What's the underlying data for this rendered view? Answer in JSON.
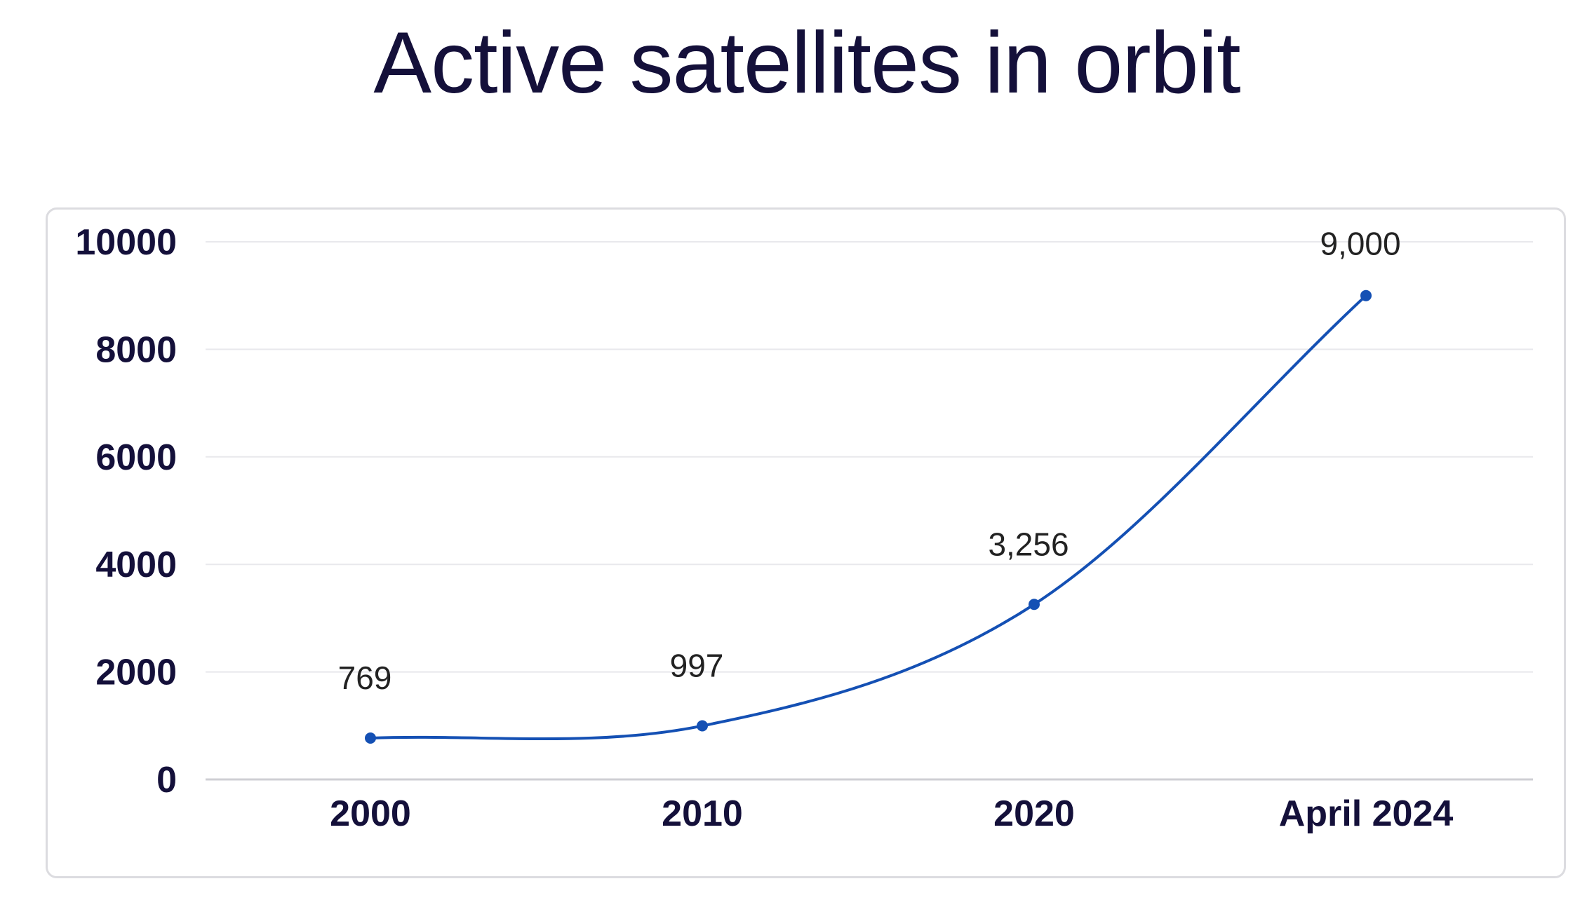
{
  "chart_data": {
    "type": "line",
    "title": "Active satellites in orbit",
    "categories": [
      "2000",
      "2010",
      "2020",
      "April 2024"
    ],
    "series": [
      {
        "values": [
          769,
          997,
          3256,
          9000
        ],
        "labels": [
          "769",
          "997",
          "3,256",
          "9,000"
        ],
        "color": "#1450b4"
      }
    ],
    "yticks": [
      "0",
      "2000",
      "4000",
      "6000",
      "8000",
      "10000"
    ],
    "ylim": [
      0,
      10000
    ],
    "grid": true,
    "xlabel": "",
    "ylabel": ""
  }
}
